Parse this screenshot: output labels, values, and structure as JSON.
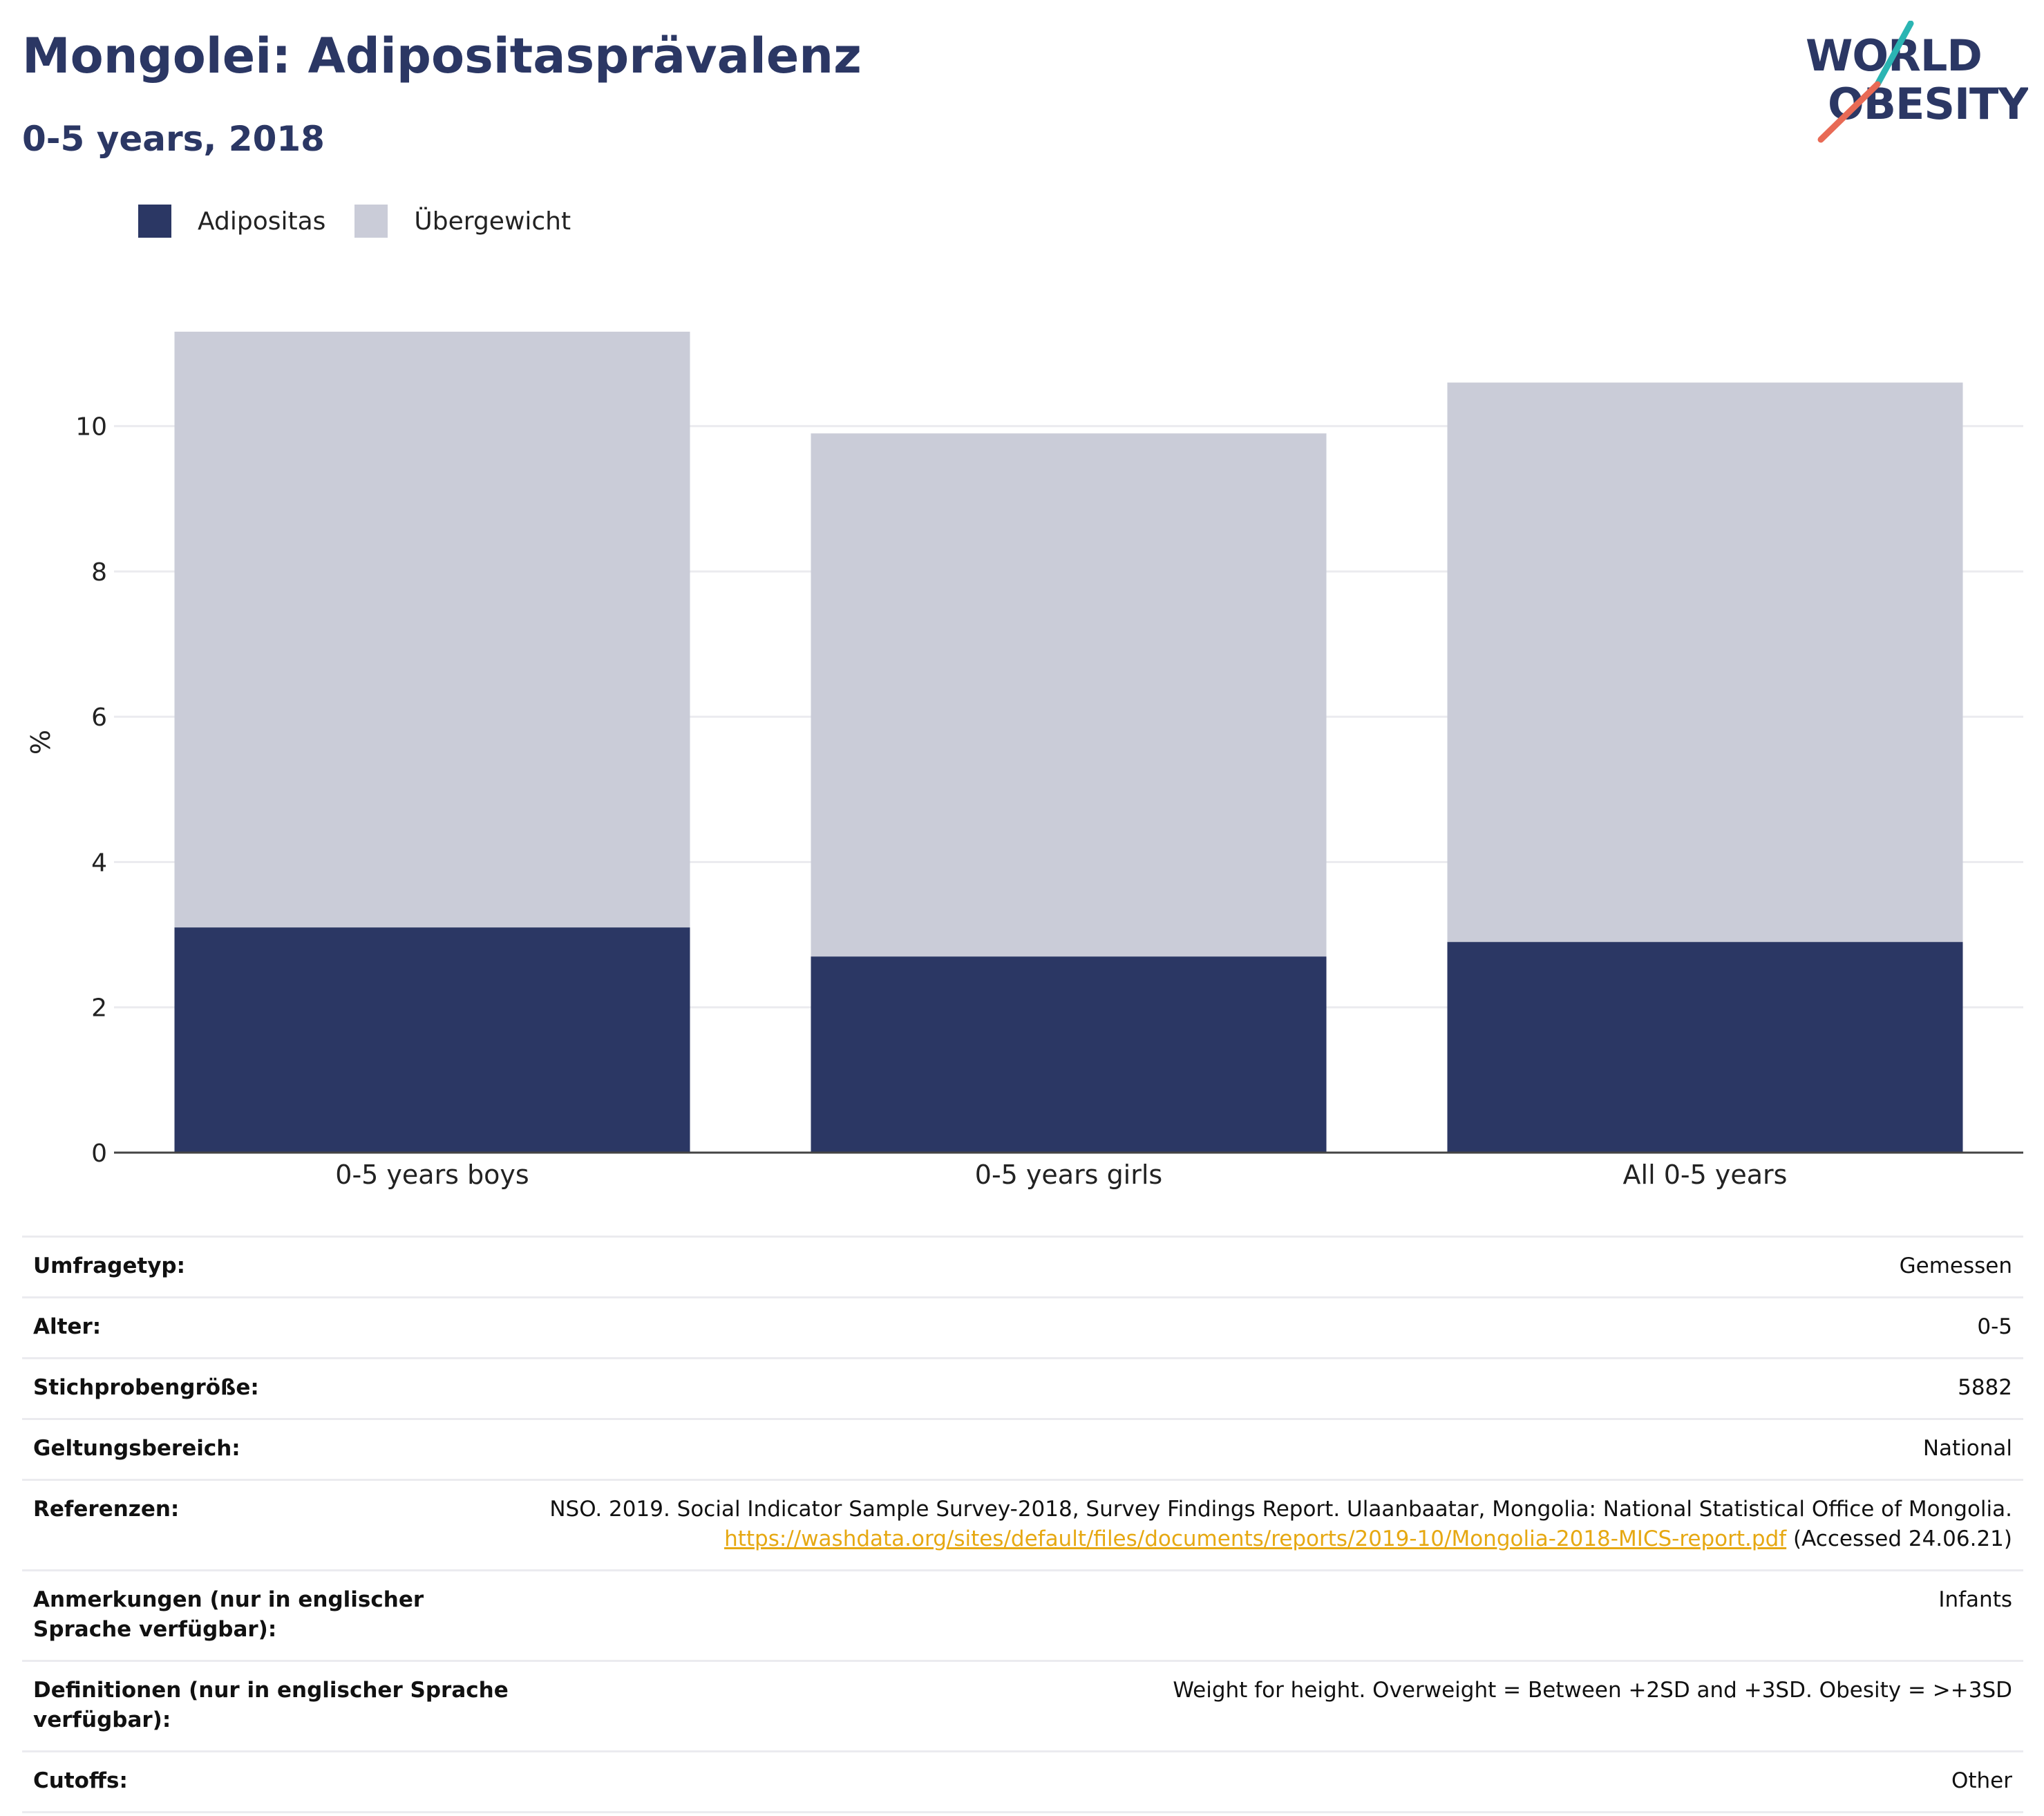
{
  "header": {
    "title": "Mongolei: Adipositasprävalenz",
    "subtitle": "0-5 years, 2018",
    "logo_line1": "WORLD",
    "logo_line2": "OBESITY"
  },
  "colors": {
    "obesity": "#2b3764",
    "overweight": "#caccd8",
    "title": "#2b3764",
    "link": "#e6a812",
    "logo_teal": "#2bb5b3",
    "logo_red": "#e86a55"
  },
  "legend": {
    "items": [
      {
        "label": "Adipositas",
        "color": "#2b3764"
      },
      {
        "label": "Übergewicht",
        "color": "#caccd8"
      }
    ]
  },
  "chart_data": {
    "type": "bar",
    "stacked": true,
    "categories": [
      "0-5 years boys",
      "0-5 years girls",
      "All 0-5 years"
    ],
    "series": [
      {
        "name": "Adipositas",
        "values": [
          3.1,
          2.7,
          2.9
        ]
      },
      {
        "name": "Übergewicht",
        "values": [
          8.2,
          7.2,
          7.7
        ]
      }
    ],
    "ylabel": "%",
    "ylim": [
      0,
      11.3
    ],
    "yticks": [
      0,
      2,
      4,
      6,
      8,
      10
    ],
    "grid": true,
    "legend_position": "top-left"
  },
  "info": {
    "survey_type": {
      "label": "Umfragetyp:",
      "value": "Gemessen"
    },
    "age": {
      "label": "Alter:",
      "value": "0-5"
    },
    "sample_size": {
      "label": "Stichprobengröße:",
      "value": "5882"
    },
    "scope": {
      "label": "Geltungsbereich:",
      "value": "National"
    },
    "references": {
      "label": "Referenzen:",
      "text_before": "NSO. 2019. Social Indicator Sample Survey-2018, Survey Findings Report. Ulaanbaatar, Mongolia: National Statistical Office of Mongolia. ",
      "link": "https://washdata.org/sites/default/files/documents/reports/2019-10/Mongolia-2018-MICS-report.pdf",
      "text_after": " (Accessed 24.06.21)"
    },
    "notes": {
      "label": "Anmerkungen (nur in englischer Sprache verfügbar):",
      "value": "Infants"
    },
    "definitions": {
      "label": "Definitionen (nur in englischer Sprache verfügbar):",
      "value": "Weight for height. Overweight = Between +2SD and +3SD. Obesity = >+3SD"
    },
    "cutoffs": {
      "label": "Cutoffs:",
      "value": "Other"
    }
  }
}
